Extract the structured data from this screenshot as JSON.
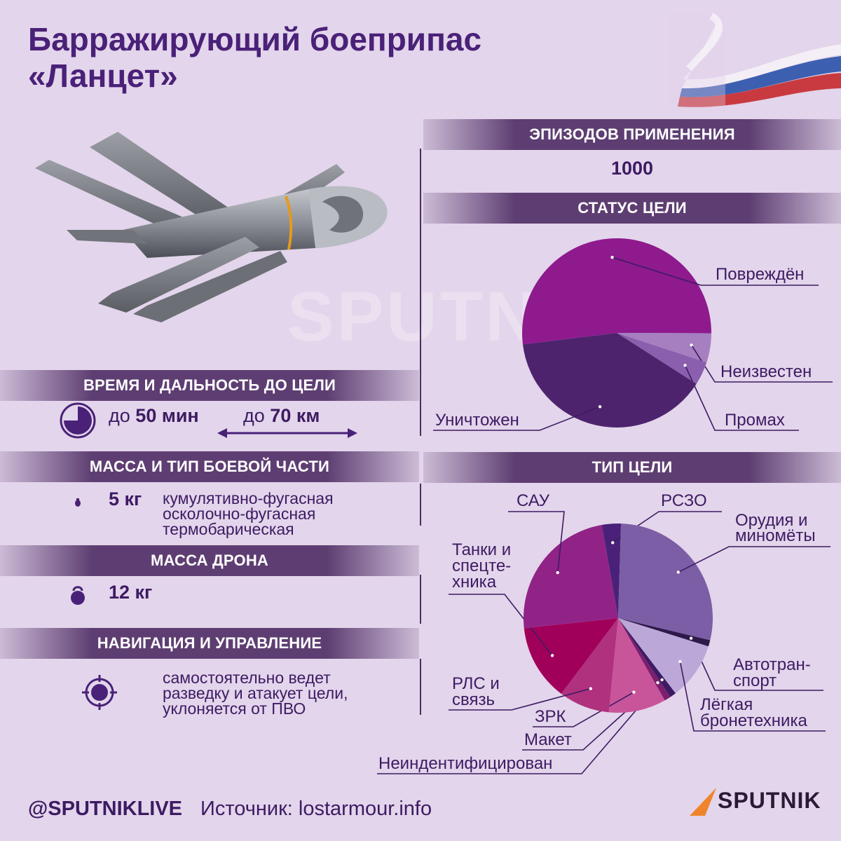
{
  "title_line1": "Барражирующий боеприпас",
  "title_line2": "«Ланцет»",
  "watermark": "SPUTNIK",
  "sections": {
    "time_range": "ВРЕМЯ И ДАЛЬНОСТЬ ДО ЦЕЛИ",
    "warhead": "МАССА И ТИП БОЕВОЙ ЧАСТИ",
    "drone_mass": "МАССА ДРОНА",
    "navigation": "НАВИГАЦИЯ И УПРАВЛЕНИЕ",
    "episodes": "ЭПИЗОДОВ ПРИМЕНЕНИЯ",
    "target_status": "СТАТУС ЦЕЛИ",
    "target_type": "ТИП ЦЕЛИ"
  },
  "time": {
    "prefix": "до",
    "value": "50",
    "unit": "мин"
  },
  "range": {
    "prefix": "до",
    "value": "70",
    "unit": "км"
  },
  "warhead": {
    "mass": "5 кг",
    "types": [
      "кумулятивно-фугасная",
      "осколочно-фугасная",
      "термобарическая"
    ]
  },
  "drone_mass": "12 кг",
  "navigation": [
    "самостоятельно ведет",
    "разведку и атакует цели,",
    "уклоняется от ПВО"
  ],
  "episodes": "1000",
  "footer": {
    "handle": "@SPUTNIKLIVE",
    "source": "Источник: lostarmour.info"
  },
  "logo": "SPUTNIK",
  "icons": [
    "clock-icon",
    "range-arrow-icon",
    "bomb-icon",
    "kettlebell-icon",
    "target-icon",
    "drone-illustration",
    "russian-flag-ribbon",
    "sputnik-logo-icon"
  ],
  "colors": {
    "band": "#5e3e72",
    "title": "#4a2178",
    "background": "#e3d5eb",
    "dark_purple": "#3d1b63"
  },
  "chart_data": [
    {
      "type": "pie",
      "title": "СТАТУС ЦЕЛИ",
      "categories": [
        "Повреждён",
        "Неизвестен",
        "Промах",
        "Уничтожен"
      ],
      "values": [
        52,
        5,
        4,
        39
      ],
      "colors": [
        "#8e1a8e",
        "#a57fbf",
        "#8a5fad",
        "#4e236e"
      ]
    },
    {
      "type": "pie",
      "title": "ТИП ЦЕЛИ",
      "categories": [
        "РСЗО",
        "Орудия и миномёты",
        "Автотранспорт",
        "Лёгкая бронетехника",
        "Неиндентифицирован",
        "Макет",
        "ЗРК",
        "РЛС и связь",
        "Танки и спецтехника",
        "САУ"
      ],
      "values": [
        3,
        26,
        1,
        9,
        1,
        1,
        9,
        8,
        12,
        22
      ],
      "colors": [
        "#4a2178",
        "#7c5ea6",
        "#2e1a4a",
        "#bca8d8",
        "#3d1b63",
        "#7c1e6e",
        "#c8559a",
        "#b0317e",
        "#a1005a",
        "#912387"
      ],
      "display_labels": [
        "РСЗО",
        "Орудия и\nминомёты",
        "Автотран-\nспорт",
        "Лёгкая\nбронетехника",
        "Неиндентифицирован",
        "Макет",
        "ЗРК",
        "РЛС и\nсвязь",
        "Танки и\nспецте-\nхника",
        "САУ"
      ]
    }
  ]
}
